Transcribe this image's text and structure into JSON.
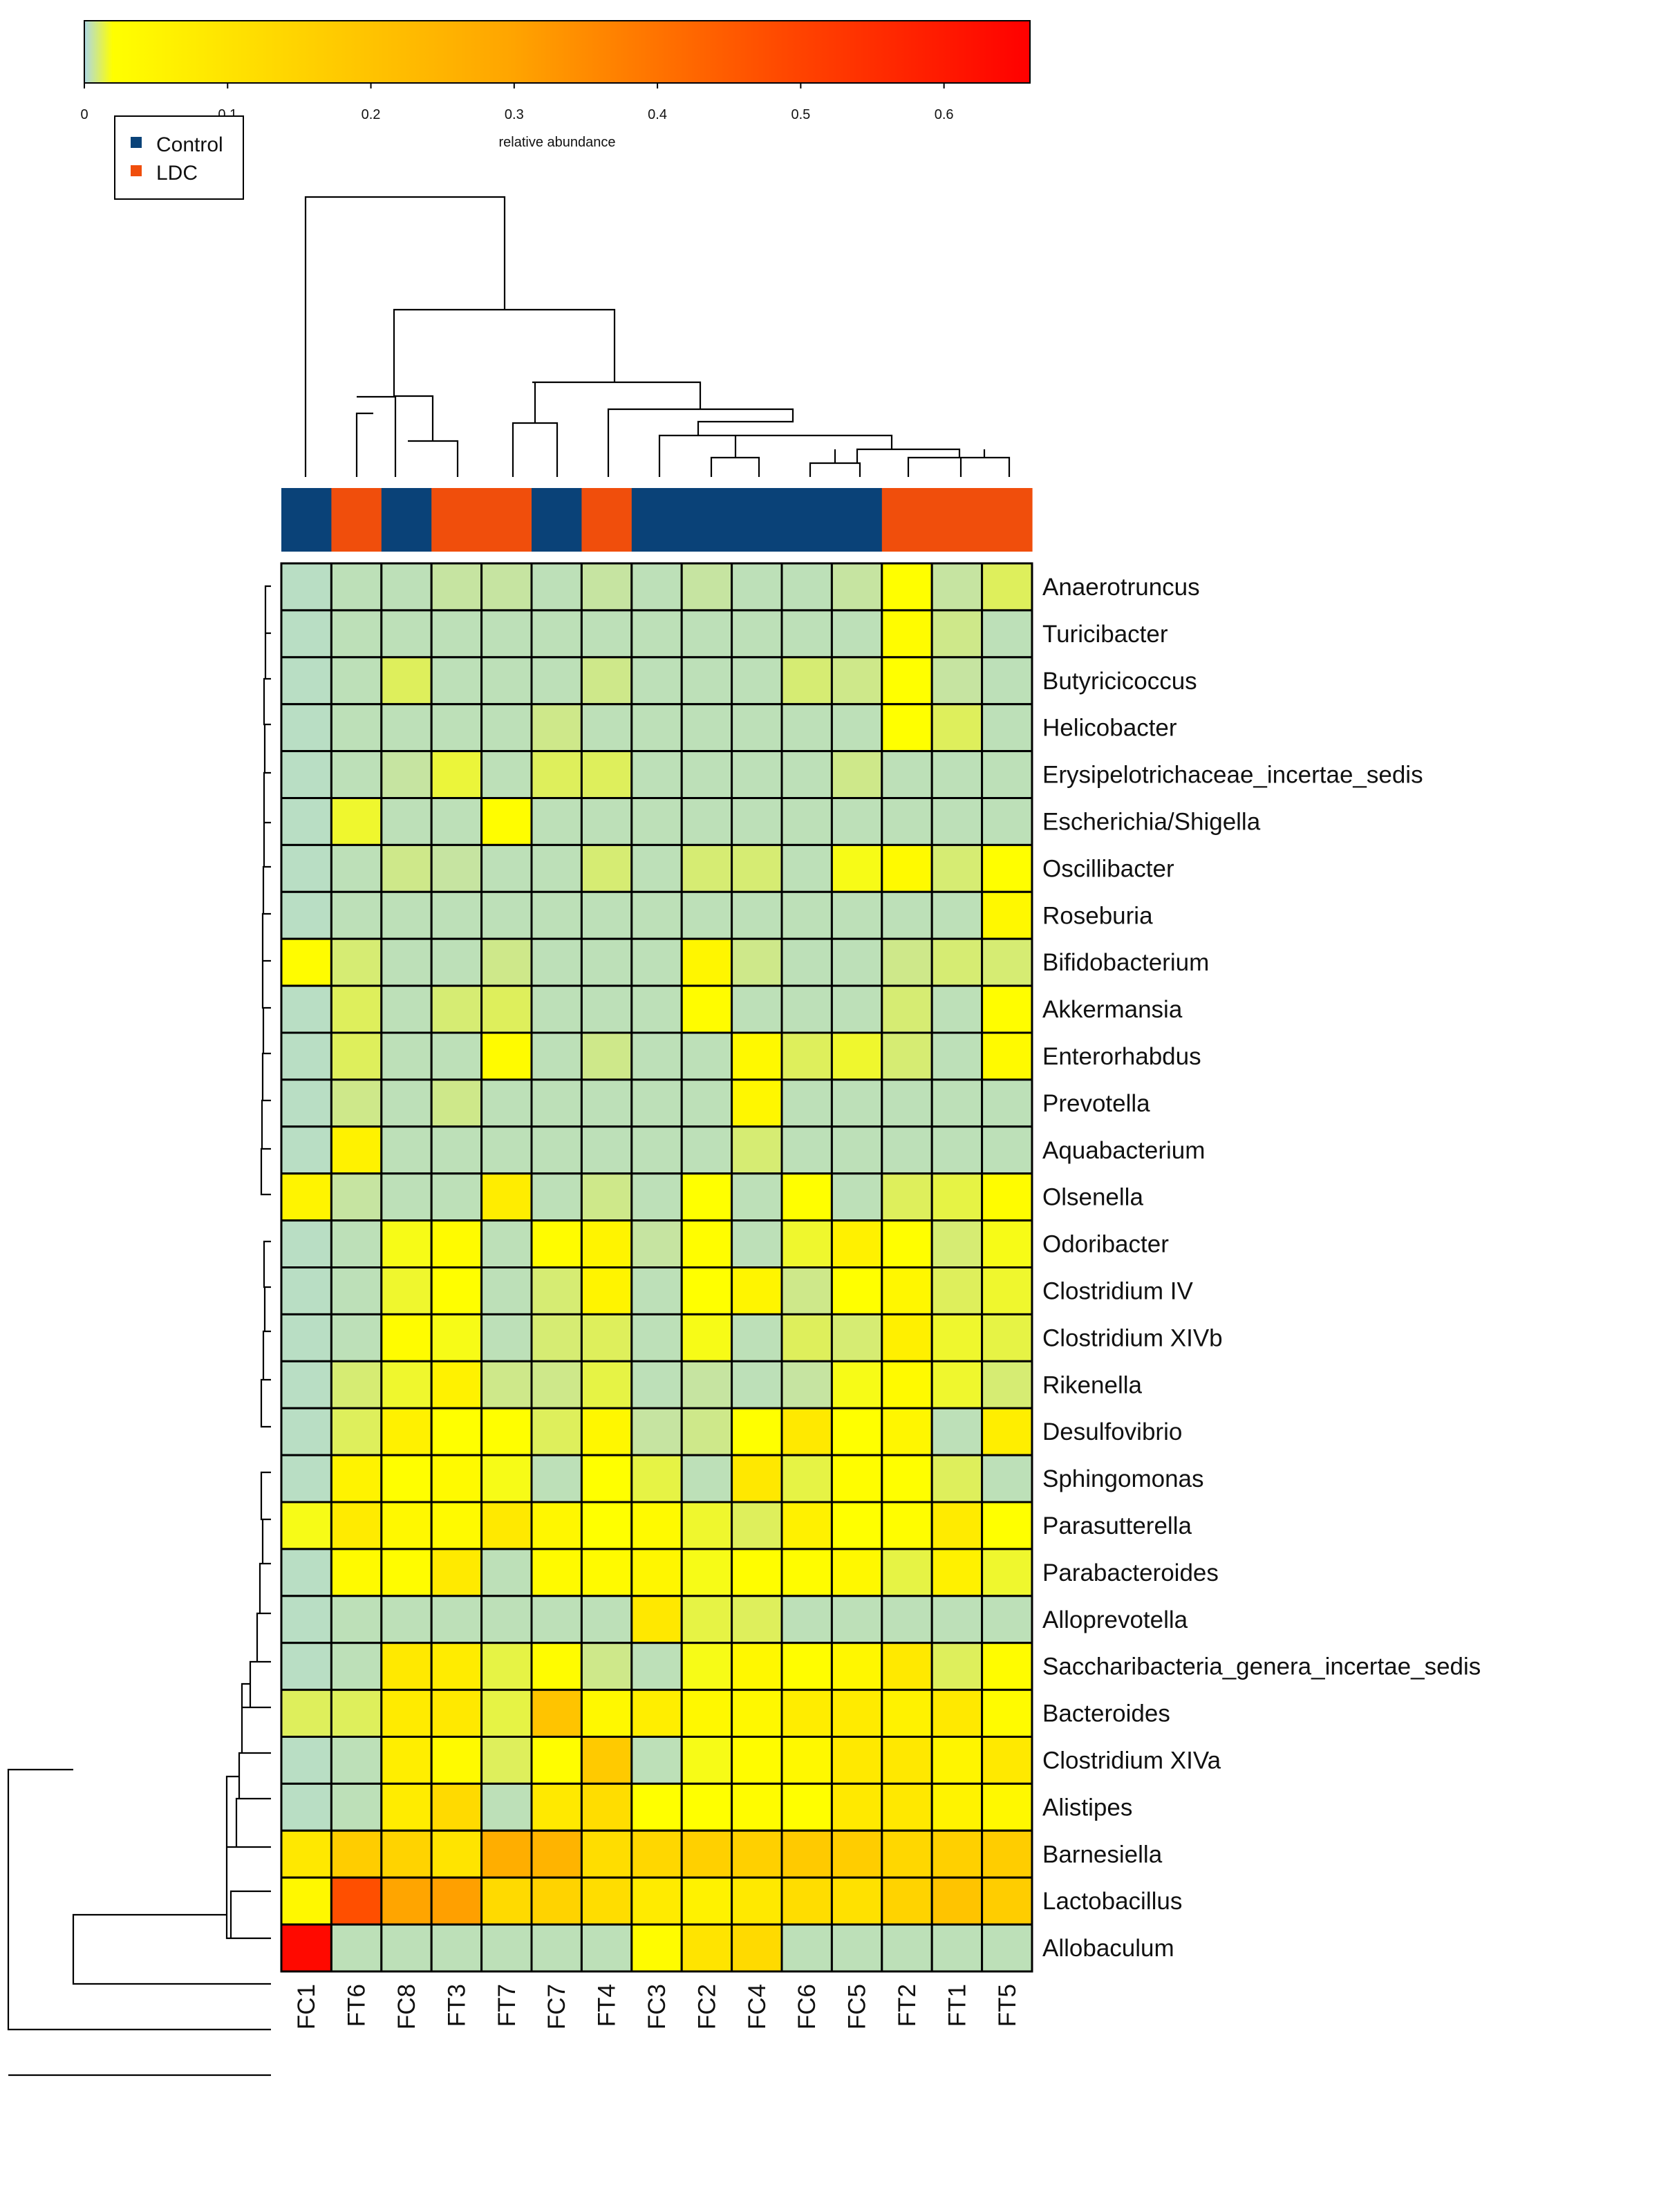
{
  "chart_data": {
    "type": "heatmap",
    "colorbar": {
      "title": "relative abundance",
      "ticks": [
        0,
        0.1,
        0.2,
        0.3,
        0.4,
        0.5,
        0.6
      ],
      "tick_labels": [
        "0",
        "0.1",
        "0.2",
        "0.3",
        "0.4",
        "0.5",
        "0.6"
      ],
      "range": [
        0,
        0.66
      ],
      "colors": [
        "#add8e6",
        "#ffff00",
        "#ffa500",
        "#ff4500",
        "#ff0000"
      ]
    },
    "legend": {
      "placement": "top-left",
      "entries": [
        {
          "label": "Control",
          "color": "#0a4278"
        },
        {
          "label": "LDC",
          "color": "#f04e0c"
        }
      ]
    },
    "samples": [
      "FC1",
      "FT6",
      "FC8",
      "FT3",
      "FT7",
      "FC7",
      "FT4",
      "FC3",
      "FC2",
      "FC4",
      "FC6",
      "FC5",
      "FT2",
      "FT1",
      "FT5"
    ],
    "groups": [
      "Control",
      "LDC",
      "Control",
      "LDC",
      "LDC",
      "Control",
      "LDC",
      "Control",
      "Control",
      "Control",
      "Control",
      "Control",
      "LDC",
      "LDC",
      "LDC"
    ],
    "genera": [
      "Anaerotruncus",
      "Turicibacter",
      "Butyricicoccus",
      "Helicobacter",
      "Erysipelotrichaceae_incertae_sedis",
      "Escherichia/Shigella",
      "Oscillibacter",
      "Roseburia",
      "Bifidobacterium",
      "Akkermansia",
      "Enterorhabdus",
      "Prevotella",
      "Aquabacterium",
      "Olsenella",
      "Odoribacter",
      "Clostridium IV",
      "Clostridium XIVb",
      "Rikenella",
      "Desulfovibrio",
      "Sphingomonas",
      "Parasutterella",
      "Parabacteroides",
      "Alloprevotella",
      "Saccharibacteria_genera_incertae_sedis",
      "Bacteroides",
      "Clostridium XIVa",
      "Alistipes",
      "Barnesiella",
      "Lactobacillus",
      "Allobaculum"
    ],
    "values": [
      [
        0.003,
        0.004,
        0.004,
        0.006,
        0.006,
        0.004,
        0.006,
        0.004,
        0.006,
        0.004,
        0.004,
        0.006,
        0.022,
        0.006,
        0.012
      ],
      [
        0.003,
        0.004,
        0.004,
        0.004,
        0.004,
        0.004,
        0.004,
        0.004,
        0.004,
        0.004,
        0.004,
        0.004,
        0.028,
        0.008,
        0.004
      ],
      [
        0.003,
        0.004,
        0.012,
        0.004,
        0.004,
        0.004,
        0.008,
        0.004,
        0.004,
        0.004,
        0.01,
        0.008,
        0.02,
        0.006,
        0.004
      ],
      [
        0.003,
        0.004,
        0.004,
        0.004,
        0.004,
        0.008,
        0.004,
        0.004,
        0.004,
        0.004,
        0.004,
        0.004,
        0.02,
        0.012,
        0.004
      ],
      [
        0.003,
        0.004,
        0.006,
        0.015,
        0.004,
        0.012,
        0.012,
        0.004,
        0.004,
        0.004,
        0.004,
        0.008,
        0.004,
        0.004,
        0.004
      ],
      [
        0.003,
        0.016,
        0.004,
        0.004,
        0.026,
        0.004,
        0.004,
        0.004,
        0.004,
        0.004,
        0.004,
        0.004,
        0.004,
        0.004,
        0.004
      ],
      [
        0.003,
        0.004,
        0.008,
        0.006,
        0.004,
        0.004,
        0.01,
        0.004,
        0.01,
        0.01,
        0.004,
        0.018,
        0.036,
        0.01,
        0.022
      ],
      [
        0.003,
        0.004,
        0.004,
        0.004,
        0.004,
        0.004,
        0.004,
        0.004,
        0.004,
        0.004,
        0.004,
        0.004,
        0.004,
        0.004,
        0.042
      ],
      [
        0.028,
        0.01,
        0.004,
        0.004,
        0.008,
        0.004,
        0.004,
        0.004,
        0.046,
        0.008,
        0.004,
        0.004,
        0.008,
        0.01,
        0.01
      ],
      [
        0.003,
        0.012,
        0.004,
        0.01,
        0.012,
        0.004,
        0.004,
        0.004,
        0.03,
        0.004,
        0.004,
        0.004,
        0.01,
        0.004,
        0.026
      ],
      [
        0.003,
        0.012,
        0.004,
        0.004,
        0.032,
        0.004,
        0.008,
        0.004,
        0.004,
        0.038,
        0.012,
        0.016,
        0.01,
        0.004,
        0.036
      ],
      [
        0.003,
        0.008,
        0.004,
        0.008,
        0.004,
        0.004,
        0.004,
        0.004,
        0.004,
        0.044,
        0.004,
        0.004,
        0.004,
        0.004,
        0.004
      ],
      [
        0.003,
        0.058,
        0.004,
        0.004,
        0.004,
        0.004,
        0.004,
        0.004,
        0.004,
        0.01,
        0.004,
        0.004,
        0.004,
        0.004,
        0.004
      ],
      [
        0.052,
        0.006,
        0.004,
        0.004,
        0.075,
        0.004,
        0.008,
        0.004,
        0.02,
        0.004,
        0.022,
        0.004,
        0.012,
        0.014,
        0.03
      ],
      [
        0.003,
        0.004,
        0.018,
        0.032,
        0.004,
        0.03,
        0.052,
        0.006,
        0.026,
        0.004,
        0.016,
        0.062,
        0.022,
        0.01,
        0.018
      ],
      [
        0.003,
        0.004,
        0.016,
        0.024,
        0.004,
        0.01,
        0.054,
        0.004,
        0.02,
        0.05,
        0.008,
        0.02,
        0.044,
        0.012,
        0.016
      ],
      [
        0.003,
        0.004,
        0.03,
        0.018,
        0.004,
        0.01,
        0.012,
        0.004,
        0.018,
        0.004,
        0.012,
        0.01,
        0.065,
        0.016,
        0.014
      ],
      [
        0.003,
        0.01,
        0.016,
        0.058,
        0.008,
        0.008,
        0.014,
        0.004,
        0.006,
        0.004,
        0.006,
        0.018,
        0.034,
        0.016,
        0.01
      ],
      [
        0.003,
        0.012,
        0.062,
        0.02,
        0.022,
        0.012,
        0.044,
        0.006,
        0.008,
        0.02,
        0.085,
        0.02,
        0.048,
        0.004,
        0.07
      ],
      [
        0.003,
        0.055,
        0.022,
        0.034,
        0.018,
        0.004,
        0.02,
        0.014,
        0.004,
        0.09,
        0.014,
        0.026,
        0.024,
        0.012,
        0.004
      ],
      [
        0.018,
        0.08,
        0.04,
        0.036,
        0.085,
        0.044,
        0.02,
        0.036,
        0.016,
        0.012,
        0.062,
        0.02,
        0.026,
        0.08,
        0.02
      ],
      [
        0.003,
        0.034,
        0.03,
        0.082,
        0.004,
        0.034,
        0.036,
        0.046,
        0.018,
        0.026,
        0.03,
        0.04,
        0.014,
        0.062,
        0.016
      ],
      [
        0.003,
        0.004,
        0.004,
        0.004,
        0.004,
        0.004,
        0.004,
        0.09,
        0.014,
        0.012,
        0.004,
        0.004,
        0.004,
        0.004,
        0.004
      ],
      [
        0.003,
        0.004,
        0.085,
        0.078,
        0.014,
        0.03,
        0.008,
        0.004,
        0.018,
        0.042,
        0.026,
        0.044,
        0.085,
        0.012,
        0.03
      ],
      [
        0.012,
        0.012,
        0.08,
        0.085,
        0.014,
        0.2,
        0.04,
        0.072,
        0.04,
        0.042,
        0.074,
        0.08,
        0.06,
        0.085,
        0.032
      ],
      [
        0.003,
        0.004,
        0.072,
        0.036,
        0.012,
        0.026,
        0.18,
        0.004,
        0.018,
        0.03,
        0.04,
        0.085,
        0.09,
        0.05,
        0.085
      ],
      [
        0.003,
        0.004,
        0.078,
        0.13,
        0.004,
        0.085,
        0.12,
        0.02,
        0.02,
        0.028,
        0.022,
        0.085,
        0.09,
        0.055,
        0.04
      ],
      [
        0.09,
        0.17,
        0.15,
        0.1,
        0.27,
        0.25,
        0.12,
        0.14,
        0.16,
        0.16,
        0.18,
        0.17,
        0.14,
        0.16,
        0.17
      ],
      [
        0.04,
        0.48,
        0.3,
        0.31,
        0.13,
        0.15,
        0.12,
        0.08,
        0.06,
        0.085,
        0.12,
        0.11,
        0.15,
        0.2,
        0.17
      ],
      [
        0.64,
        0.004,
        0.004,
        0.004,
        0.004,
        0.004,
        0.004,
        0.03,
        0.1,
        0.13,
        0.004,
        0.004,
        0.004,
        0.004,
        0.004
      ]
    ]
  }
}
